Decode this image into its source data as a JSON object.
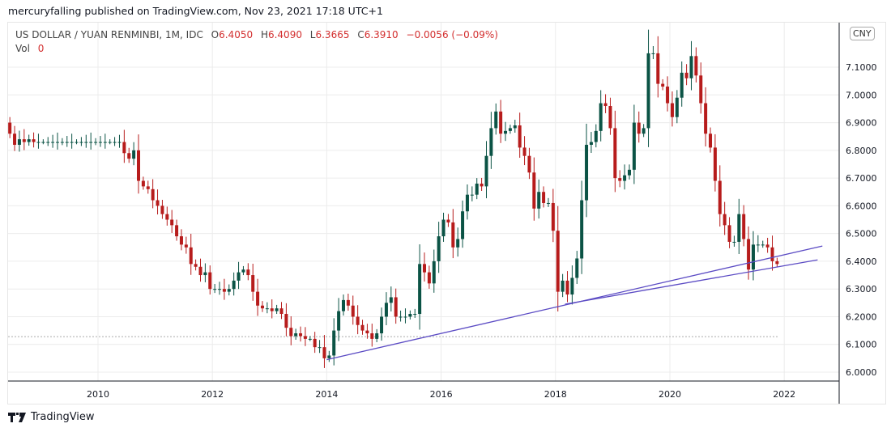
{
  "header": {
    "published": "mercuryfalling published on TradingView.com, Nov 23, 2021 17:18 UTC+1"
  },
  "legend": {
    "symbol": "US DOLLAR / YUAN RENMINBI, 1M, IDC",
    "o_label": "O",
    "o": "6.4050",
    "h_label": "H",
    "h": "6.4090",
    "l_label": "L",
    "l": "6.3665",
    "c_label": "C",
    "c": "6.3910",
    "change": "−0.0056 (−0.09%)",
    "vol_label": "Vol",
    "vol": "0"
  },
  "currency_badge": "CNY",
  "footer": {
    "brand": "TradingView"
  },
  "colors": {
    "up": "#0b5345",
    "down": "#b71c1c",
    "trendline": "#5b4bc4",
    "grid": "#ececec"
  },
  "chart_data": {
    "type": "candlestick",
    "title": "US DOLLAR / YUAN RENMINBI, 1M, IDC",
    "start": "2008-06",
    "interval": "1M",
    "first_open": 6.9,
    "close": [
      6.86,
      6.82,
      6.84,
      6.83,
      6.84,
      6.83,
      6.83,
      6.83,
      6.83,
      6.83,
      6.83,
      6.83,
      6.83,
      6.83,
      6.83,
      6.83,
      6.83,
      6.83,
      6.83,
      6.83,
      6.83,
      6.83,
      6.83,
      6.83,
      6.79,
      6.77,
      6.8,
      6.69,
      6.67,
      6.66,
      6.62,
      6.6,
      6.57,
      6.55,
      6.53,
      6.49,
      6.46,
      6.45,
      6.39,
      6.38,
      6.35,
      6.36,
      6.3,
      6.3,
      6.3,
      6.29,
      6.3,
      6.33,
      6.36,
      6.37,
      6.35,
      6.29,
      6.24,
      6.23,
      6.23,
      6.22,
      6.23,
      6.21,
      6.16,
      6.13,
      6.14,
      6.13,
      6.12,
      6.12,
      6.09,
      6.09,
      6.05,
      6.06,
      6.15,
      6.22,
      6.26,
      6.24,
      6.2,
      6.17,
      6.15,
      6.14,
      6.12,
      6.14,
      6.2,
      6.25,
      6.27,
      6.2,
      6.2,
      6.2,
      6.21,
      6.21,
      6.39,
      6.36,
      6.32,
      6.4,
      6.49,
      6.55,
      6.54,
      6.45,
      6.48,
      6.58,
      6.64,
      6.64,
      6.68,
      6.67,
      6.78,
      6.88,
      6.94,
      6.86,
      6.87,
      6.88,
      6.89,
      6.81,
      6.78,
      6.72,
      6.59,
      6.65,
      6.61,
      6.61,
      6.51,
      6.29,
      6.33,
      6.28,
      6.34,
      6.41,
      6.62,
      6.82,
      6.83,
      6.87,
      6.97,
      6.96,
      6.88,
      6.7,
      6.69,
      6.71,
      6.73,
      6.9,
      6.86,
      6.88,
      7.15,
      7.15,
      7.04,
      7.03,
      6.97,
      6.92,
      6.99,
      7.08,
      7.06,
      7.14,
      7.07,
      6.97,
      6.86,
      6.81,
      6.69,
      6.57,
      6.53,
      6.47,
      6.47,
      6.57,
      6.48,
      6.37,
      6.46,
      6.46,
      6.46,
      6.45,
      6.4,
      6.39
    ],
    "y_ticks": [
      "7.1000",
      "7.0000",
      "6.9000",
      "6.8000",
      "6.7000",
      "6.6000",
      "6.5000",
      "6.4000",
      "6.3000",
      "6.2000",
      "6.1000",
      "6.0000"
    ],
    "x_ticks": [
      "2010",
      "2012",
      "2014",
      "2016",
      "2018",
      "2020",
      "2022"
    ],
    "ylim": [
      5.97,
      7.25
    ],
    "xlim": [
      2008.42,
      2023.25
    ],
    "trendlines": [
      {
        "from": [
          "2014-01",
          6.045
        ],
        "to": [
          "2022-09",
          6.455
        ]
      },
      {
        "from": [
          "2018-03",
          6.245
        ],
        "to": [
          "2022-08",
          6.405
        ]
      }
    ],
    "hline": 6.128
  }
}
